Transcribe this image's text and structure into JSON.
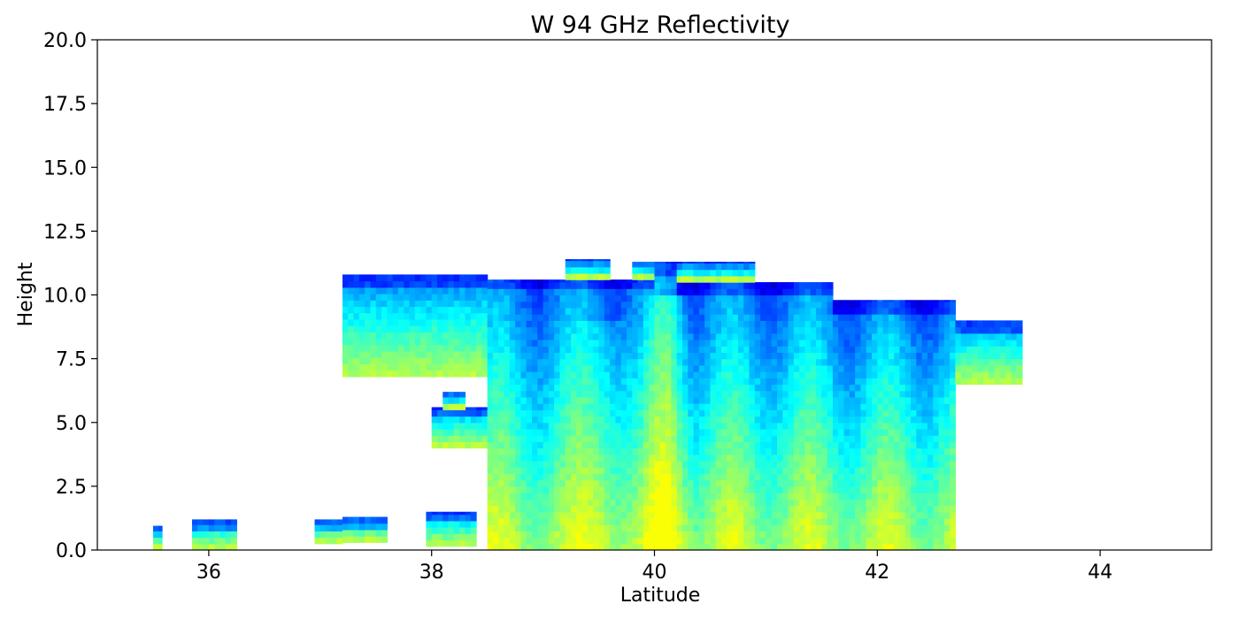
{
  "chart_data": {
    "type": "heatmap",
    "title": "W 94 GHz Reflectivity",
    "xlabel": "Latitude",
    "ylabel": "Height",
    "xlim": [
      35,
      45
    ],
    "ylim": [
      0,
      20
    ],
    "xticks": [
      {
        "value": 36,
        "label": "36"
      },
      {
        "value": 38,
        "label": "38"
      },
      {
        "value": 40,
        "label": "40"
      },
      {
        "value": 42,
        "label": "42"
      },
      {
        "value": 44,
        "label": "44"
      }
    ],
    "yticks": [
      {
        "value": 0,
        "label": "0.0"
      },
      {
        "value": 2.5,
        "label": "2.5"
      },
      {
        "value": 5,
        "label": "5.0"
      },
      {
        "value": 7.5,
        "label": "7.5"
      },
      {
        "value": 10,
        "label": "10.0"
      },
      {
        "value": 12.5,
        "label": "12.5"
      },
      {
        "value": 15,
        "label": "15.0"
      },
      {
        "value": 17.5,
        "label": "17.5"
      },
      {
        "value": 20,
        "label": "20.0"
      }
    ],
    "grid": false,
    "colormap": "jet",
    "profiles": [
      [
        35.5,
        35.58,
        0.0,
        0.95
      ],
      [
        35.85,
        36.25,
        0.0,
        1.2
      ],
      [
        36.95,
        37.2,
        0.25,
        1.2
      ],
      [
        37.2,
        37.6,
        0.3,
        1.3
      ],
      [
        37.95,
        38.4,
        0.15,
        1.5
      ],
      [
        38.0,
        38.5,
        4.0,
        5.6
      ],
      [
        38.1,
        38.3,
        5.5,
        6.2
      ],
      [
        37.2,
        38.5,
        6.8,
        10.8
      ],
      [
        38.5,
        40.0,
        0.0,
        10.6
      ],
      [
        39.2,
        39.6,
        10.6,
        11.4
      ],
      [
        39.8,
        40.0,
        10.6,
        11.3
      ],
      [
        40.0,
        40.2,
        0.0,
        11.3
      ],
      [
        40.2,
        41.6,
        0.0,
        10.5
      ],
      [
        40.2,
        40.9,
        10.5,
        11.3
      ],
      [
        41.6,
        42.7,
        0.0,
        9.8
      ],
      [
        42.7,
        43.3,
        6.5,
        9.0
      ]
    ]
  }
}
